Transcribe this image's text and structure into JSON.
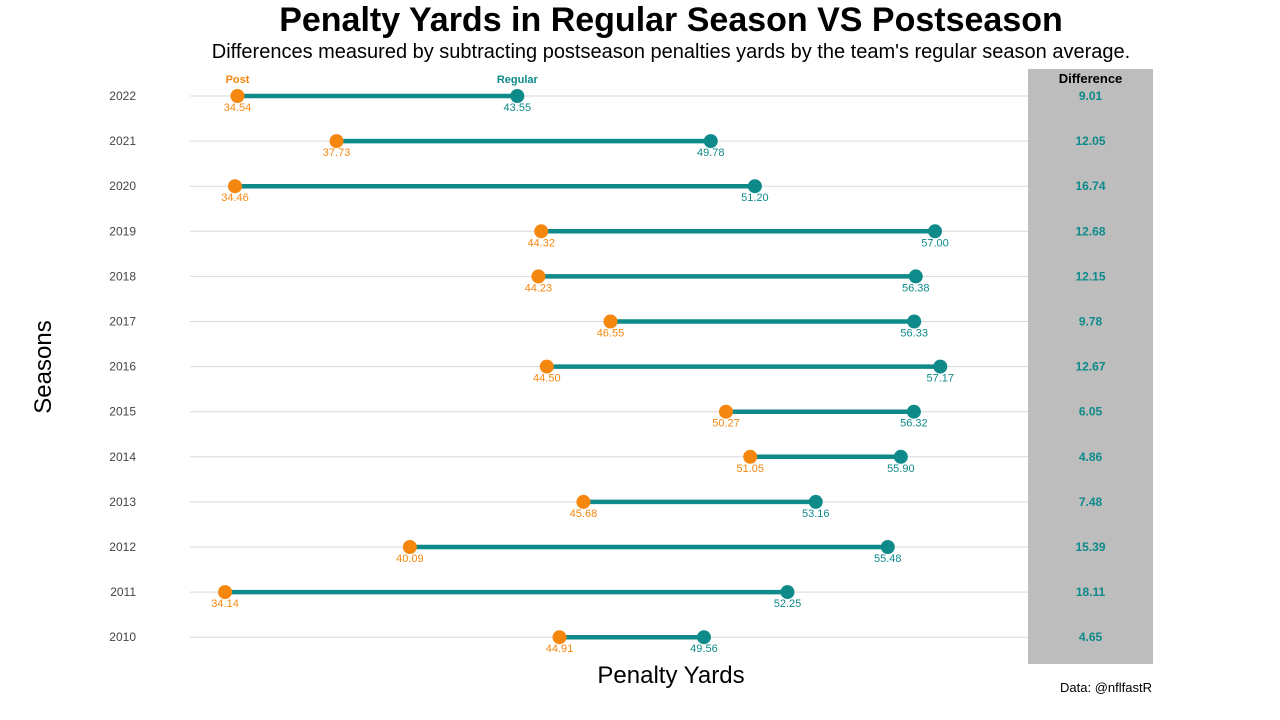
{
  "title": "Penalty Yards in Regular Season VS Postseason",
  "subtitle": "Differences measured by subtracting postseason penalties yards by the team's regular season average.",
  "colors": {
    "post": "#f5870f",
    "regular": "#0e8a8a",
    "panel": "#bdbdbd",
    "grid": "#d9d9d9"
  },
  "chart_data": {
    "type": "dumbbell",
    "xlabel": "Penalty Yards",
    "ylabel": "Seasons",
    "caption": "Data: @nflfastR",
    "difference_header": "Difference",
    "series_labels": {
      "post": "Post",
      "regular": "Regular"
    },
    "xlim": [
      34,
      57.5
    ],
    "grid": true,
    "rows": [
      {
        "season": "2022",
        "post": 34.54,
        "regular": 43.55,
        "post_label": "34.54",
        "regular_label": "43.55",
        "difference": "9.01"
      },
      {
        "season": "2021",
        "post": 37.73,
        "regular": 49.78,
        "post_label": "37.73",
        "regular_label": "49.78",
        "difference": "12.05"
      },
      {
        "season": "2020",
        "post": 34.46,
        "regular": 51.2,
        "post_label": "34.46",
        "regular_label": "51.20",
        "difference": "16.74"
      },
      {
        "season": "2019",
        "post": 44.32,
        "regular": 57.0,
        "post_label": "44.32",
        "regular_label": "57.00",
        "difference": "12.68"
      },
      {
        "season": "2018",
        "post": 44.23,
        "regular": 56.38,
        "post_label": "44.23",
        "regular_label": "56.38",
        "difference": "12.15"
      },
      {
        "season": "2017",
        "post": 46.55,
        "regular": 56.33,
        "post_label": "46.55",
        "regular_label": "56.33",
        "difference": "9.78"
      },
      {
        "season": "2016",
        "post": 44.5,
        "regular": 57.17,
        "post_label": "44.50",
        "regular_label": "57.17",
        "difference": "12.67"
      },
      {
        "season": "2015",
        "post": 50.27,
        "regular": 56.32,
        "post_label": "50.27",
        "regular_label": "56.32",
        "difference": "6.05"
      },
      {
        "season": "2014",
        "post": 51.05,
        "regular": 55.9,
        "post_label": "51.05",
        "regular_label": "55.90",
        "difference": "4.86"
      },
      {
        "season": "2013",
        "post": 45.68,
        "regular": 53.16,
        "post_label": "45.68",
        "regular_label": "53.16",
        "difference": "7.48"
      },
      {
        "season": "2012",
        "post": 40.09,
        "regular": 55.48,
        "post_label": "40.09",
        "regular_label": "55.48",
        "difference": "15.39"
      },
      {
        "season": "2011",
        "post": 34.14,
        "regular": 52.25,
        "post_label": "34.14",
        "regular_label": "52.25",
        "difference": "18.11"
      },
      {
        "season": "2010",
        "post": 44.91,
        "regular": 49.56,
        "post_label": "44.91",
        "regular_label": "49.56",
        "difference": "4.65"
      }
    ]
  }
}
